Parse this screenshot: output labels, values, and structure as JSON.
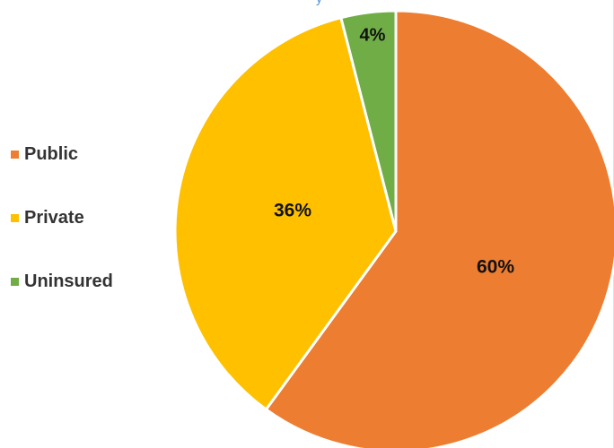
{
  "top_glyph": "y",
  "chart_data": {
    "type": "pie",
    "title": "",
    "legend_position": "left",
    "slices": [
      {
        "label": "Public",
        "value": 60,
        "display": "60%",
        "color": "#ed7d31"
      },
      {
        "label": "Private",
        "value": 36,
        "display": "36%",
        "color": "#ffc000"
      },
      {
        "label": "Uninsured",
        "value": 4,
        "display": "4%",
        "color": "#70ad47"
      }
    ]
  }
}
